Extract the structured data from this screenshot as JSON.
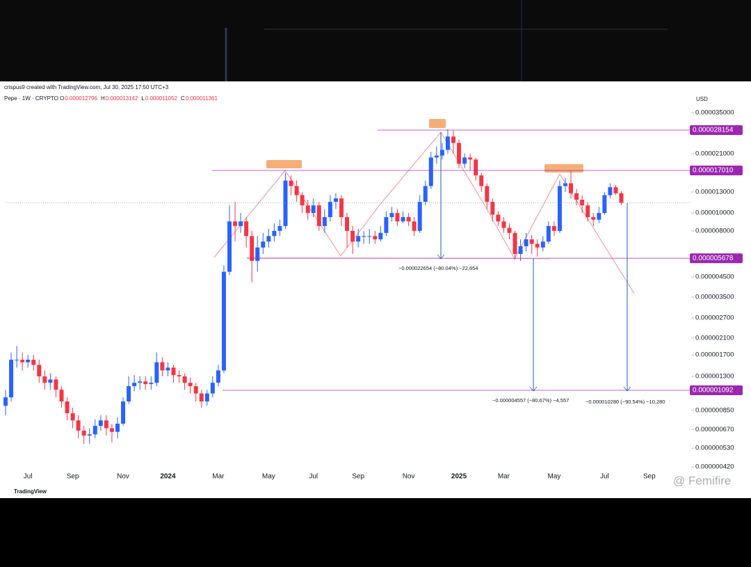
{
  "header": {
    "credit": "crispus9 created with TradingView.com, Jul 30, 2025 17:50 UTC+3",
    "symbol": "Pepe · 1W · CRYPTO",
    "ohlc": [
      {
        "label": "O",
        "value": "0.000012796"
      },
      {
        "label": "H",
        "value": "0.000013142"
      },
      {
        "label": "L",
        "value": "0.000011052"
      },
      {
        "label": "C",
        "value": "0.000011361"
      }
    ],
    "currency": "USD",
    "logo": "TradingView",
    "watermark": "@ Femifire"
  },
  "chart_data": {
    "type": "candlestick",
    "log_scale": true,
    "up_color": "#2962ff",
    "down_color": "#f23645",
    "categories": [
      null,
      null,
      null,
      null,
      "Jul",
      null,
      null,
      null,
      null,
      null,
      null,
      null,
      "Sep",
      null,
      null,
      null,
      null,
      null,
      null,
      null,
      null,
      "Nov",
      null,
      null,
      null,
      null,
      null,
      null,
      null,
      "2024",
      null,
      null,
      null,
      null,
      null,
      null,
      null,
      null,
      "Mar",
      null,
      null,
      null,
      null,
      null,
      null,
      null,
      null,
      "May",
      null,
      null,
      null,
      null,
      null,
      null,
      null,
      "Jul",
      null,
      null,
      null,
      null,
      null,
      null,
      null,
      "Sep",
      null,
      null,
      null,
      null,
      null,
      null,
      null,
      null,
      "Nov",
      null,
      null,
      null,
      null,
      null,
      null,
      null,
      null,
      "2025",
      null,
      null,
      null,
      null,
      null,
      null,
      null,
      "Mar",
      null,
      null,
      null,
      null,
      null,
      null,
      null,
      null,
      "May",
      null,
      null,
      null,
      null,
      null,
      null,
      null,
      null,
      "Jul",
      null,
      null,
      null,
      null,
      null,
      null,
      null,
      "Sep",
      null,
      null,
      null
    ],
    "open": [
      9e-07,
      1e-06,
      1.6e-06,
      1.6e-06,
      1.55e-06,
      1.6e-06,
      1.5e-06,
      1.3e-06,
      1.2e-06,
      1.25e-06,
      1.1e-06,
      9.5e-07,
      8.2e-07,
      7.5e-07,
      6.6e-07,
      6.2e-07,
      6.3e-07,
      7e-07,
      7.5e-07,
      6.8e-07,
      6.5e-07,
      7.2e-07,
      9.5e-07,
      1.15e-06,
      1.2e-06,
      1.22e-06,
      1.18e-06,
      1.2e-06,
      1.55e-06,
      1.4e-06,
      1.45e-06,
      1.32e-06,
      1.3e-06,
      1.2e-06,
      1.15e-06,
      1.05e-06,
      9.5e-07,
      1.05e-06,
      1.2e-06,
      1.4e-06,
      4.8e-06,
      9e-06,
      8.5e-06,
      9e-06,
      7.5e-06,
      5.5e-06,
      6.5e-06,
      7e-06,
      7.5e-06,
      8e-06,
      8.5e-06,
      1.5e-05,
      1.4e-05,
      1.25e-05,
      1.1e-05,
      1e-05,
      1.1e-05,
      8.5e-06,
      9.5e-06,
      1.15e-05,
      1.2e-05,
      9.5e-06,
      8e-06,
      7e-06,
      7.5e-06,
      7.5e-06,
      7.5e-06,
      7.2e-06,
      7.8e-06,
      9.5e-06,
      1e-05,
      9e-06,
      9.5e-06,
      9e-06,
      8e-06,
      1.15e-05,
      1.4e-05,
      2e-05,
      2.05e-05,
      2.2e-05,
      2.6e-05,
      2.4e-05,
      1.85e-05,
      2e-05,
      1.95e-05,
      1.6e-05,
      1.4e-05,
      1.15e-05,
      9.8e-06,
      9e-06,
      8.3e-06,
      7.8e-06,
      6e-06,
      6.6e-06,
      7.2e-06,
      6.8e-06,
      6.5e-06,
      7e-06,
      8.5e-06,
      8e-06,
      1.4e-05,
      1.45e-05,
      1.28e-05,
      1.18e-05,
      1.1e-05,
      9.5e-06,
      9.2e-06,
      1e-05,
      1.25e-05,
      1.38e-05,
      1.2796e-05,
      null,
      null,
      null,
      null,
      null,
      null,
      null,
      null
    ],
    "high": [
      1.1e-06,
      1.75e-06,
      1.9e-06,
      1.75e-06,
      1.7e-06,
      1.7e-06,
      1.6e-06,
      1.4e-06,
      1.35e-06,
      1.3e-06,
      1.15e-06,
      1e-06,
      8.8e-07,
      8e-07,
      7e-07,
      6.8e-07,
      7.6e-07,
      8e-07,
      8e-07,
      7.2e-07,
      7.8e-07,
      1e-06,
      1.3e-06,
      1.32e-06,
      1.3e-06,
      1.3e-06,
      1.3e-06,
      1.75e-06,
      1.65e-06,
      1.55e-06,
      1.5e-06,
      1.4e-06,
      1.35e-06,
      1.28e-06,
      1.2e-06,
      1.1e-06,
      1.1e-06,
      1.3e-06,
      1.5e-06,
      5.2e-06,
      1.1e-05,
      1.15e-05,
      1e-05,
      9.5e-06,
      8e-06,
      7.5e-06,
      7.8e-06,
      8.2e-06,
      8.8e-06,
      9.2e-06,
      1.65e-05,
      1.6e-05,
      1.5e-05,
      1.3e-05,
      1.18e-05,
      1.2e-05,
      1.15e-05,
      1.05e-05,
      1.25e-05,
      1.28e-05,
      1.25e-05,
      1e-05,
      8.5e-06,
      8.2e-06,
      8e-06,
      8.2e-06,
      8e-06,
      8.5e-06,
      1.02e-05,
      1.08e-05,
      1.05e-05,
      1.02e-05,
      1e-05,
      9.5e-06,
      1.25e-05,
      1.5e-05,
      2.15e-05,
      2.3e-05,
      2.4e-05,
      2.85e-05,
      2.8e-05,
      2.5e-05,
      2.1e-05,
      2.1e-05,
      2e-05,
      1.65e-05,
      1.45e-05,
      1.2e-05,
      1.02e-05,
      9.5e-06,
      8.8e-06,
      8e-06,
      7.2e-06,
      7.8e-06,
      7.6e-06,
      7.2e-06,
      7.5e-06,
      9e-06,
      9e-06,
      1.5e-05,
      1.55e-05,
      1.7e-05,
      1.35e-05,
      1.25e-05,
      1.15e-05,
      1e-05,
      1.08e-05,
      1.3e-05,
      1.45e-05,
      1.42e-05,
      1.3142e-05,
      null,
      null,
      null,
      null,
      null,
      null,
      null,
      null
    ],
    "low": [
      8e-07,
      9.5e-07,
      1.45e-06,
      1.4e-06,
      1.45e-06,
      1.4e-06,
      1.2e-06,
      1.1e-06,
      1.1e-06,
      1e-06,
      8.8e-07,
      7.5e-07,
      6.8e-07,
      6e-07,
      5.6e-07,
      5.6e-07,
      6e-07,
      6.6e-07,
      6.2e-07,
      5.7e-07,
      6e-07,
      7e-07,
      9.2e-07,
      1.08e-06,
      1.1e-06,
      1.1e-06,
      1.1e-06,
      1.15e-06,
      1.3e-06,
      1.3e-06,
      1.2e-06,
      1.2e-06,
      1.1e-06,
      1.05e-06,
      9.5e-07,
      8.8e-07,
      9e-07,
      1e-06,
      1.15e-06,
      1.35e-06,
      4.6e-06,
      7e-06,
      7.8e-06,
      6.5e-06,
      4.2e-06,
      4.8e-06,
      6e-06,
      6.5e-06,
      7e-06,
      7.5e-06,
      8.2e-06,
      1.25e-05,
      1.15e-05,
      1e-05,
      9.2e-06,
      9.5e-06,
      8e-06,
      7.8e-06,
      9e-06,
      1.05e-05,
      8.5e-06,
      6.5e-06,
      6e-06,
      6.5e-06,
      6.8e-06,
      6.8e-06,
      6.8e-06,
      7e-06,
      7.5e-06,
      9e-06,
      8.5e-06,
      8.8e-06,
      8.5e-06,
      7.5e-06,
      7.8e-06,
      1.1e-05,
      1.35e-05,
      1.85e-05,
      1.95e-05,
      2.1e-05,
      2.1e-05,
      1.75e-05,
      1.75e-05,
      1.7e-05,
      1.5e-05,
      1.3e-05,
      1.05e-05,
      9e-06,
      8.5e-06,
      7.8e-06,
      7.2e-06,
      5.6e-06,
      5.5e-06,
      6.2e-06,
      6e-06,
      5.8e-06,
      6.2e-06,
      6.8e-06,
      7.5e-06,
      7.8e-06,
      1.3e-05,
      1.2e-05,
      1.1e-05,
      1e-05,
      9e-06,
      8.5e-06,
      8.8e-06,
      9.8e-06,
      1.2e-05,
      1.25e-05,
      1.1052e-05,
      null,
      null,
      null,
      null,
      null,
      null,
      null,
      null
    ],
    "close": [
      1e-06,
      1.6e-06,
      1.6e-06,
      1.55e-06,
      1.6e-06,
      1.5e-06,
      1.3e-06,
      1.2e-06,
      1.25e-06,
      1.1e-06,
      9.5e-07,
      8.2e-07,
      7.5e-07,
      6.6e-07,
      6.2e-07,
      6.3e-07,
      7e-07,
      7.5e-07,
      6.8e-07,
      6.5e-07,
      7.2e-07,
      9.5e-07,
      1.15e-06,
      1.2e-06,
      1.22e-06,
      1.18e-06,
      1.2e-06,
      1.55e-06,
      1.4e-06,
      1.45e-06,
      1.32e-06,
      1.3e-06,
      1.2e-06,
      1.15e-06,
      1.05e-06,
      9.5e-07,
      1.05e-06,
      1.2e-06,
      1.4e-06,
      4.8e-06,
      9e-06,
      8.5e-06,
      9e-06,
      7.5e-06,
      5.5e-06,
      6.5e-06,
      7e-06,
      7.5e-06,
      8e-06,
      8.5e-06,
      1.5e-05,
      1.4e-05,
      1.25e-05,
      1.1e-05,
      1e-05,
      1.1e-05,
      8.5e-06,
      9.5e-06,
      1.15e-05,
      1.2e-05,
      9.5e-06,
      8e-06,
      7e-06,
      7.5e-06,
      7.5e-06,
      7.5e-06,
      7.2e-06,
      7.8e-06,
      9.5e-06,
      1e-05,
      9e-06,
      9.5e-06,
      9e-06,
      8e-06,
      1.15e-05,
      1.4e-05,
      2e-05,
      2.05e-05,
      2.2e-05,
      2.6e-05,
      2.4e-05,
      1.85e-05,
      2e-05,
      1.95e-05,
      1.6e-05,
      1.4e-05,
      1.15e-05,
      9.8e-06,
      9e-06,
      8.3e-06,
      7.8e-06,
      6e-06,
      6.6e-06,
      7.2e-06,
      6.8e-06,
      6.5e-06,
      7e-06,
      8.5e-06,
      8e-06,
      1.4e-05,
      1.45e-05,
      1.28e-05,
      1.18e-05,
      1.1e-05,
      9.5e-06,
      9.2e-06,
      1e-05,
      1.25e-05,
      1.38e-05,
      1.2796e-05,
      1.1361e-05,
      null,
      null,
      null,
      null,
      null,
      null,
      null,
      null
    ],
    "ylim": [
      4.2e-07,
      3.5e-05
    ],
    "yticks": [
      {
        "value": 3.5e-05,
        "label": "0.000035000"
      },
      {
        "value": 2.1e-05,
        "label": "0.000021000"
      },
      {
        "value": 1.3e-05,
        "label": "0.000013000"
      },
      {
        "value": 1e-05,
        "label": "0.000010000"
      },
      {
        "value": 8e-06,
        "label": "0.000008000"
      },
      {
        "value": 4.5e-06,
        "label": "0.000004500"
      },
      {
        "value": 3.5e-06,
        "label": "0.000003500"
      },
      {
        "value": 2.7e-06,
        "label": "0.000002700"
      },
      {
        "value": 2.1e-06,
        "label": "0.000002100"
      },
      {
        "value": 1.7e-06,
        "label": "0.000001700"
      },
      {
        "value": 1.3e-06,
        "label": "0.000001300"
      },
      {
        "value": 8.5e-07,
        "label": "0.000000850"
      },
      {
        "value": 6.7e-07,
        "label": "0.000000670"
      },
      {
        "value": 5.3e-07,
        "label": "0.000000530"
      },
      {
        "value": 4.2e-07,
        "label": "0.000000420"
      }
    ],
    "levels": [
      2.8154e-05,
      {
        "value": 1.701e-05,
        "label": "0.000017010"
      },
      5.678e-06,
      1.092e-06
    ],
    "level_color": "#9c27b0",
    "annotations": [
      "−0.000022654 (−80.04%) −22,654",
      "−0.000004557 (−80.67%) −4,557",
      "−0.000010280 (−90.54%) −10,280"
    ]
  }
}
